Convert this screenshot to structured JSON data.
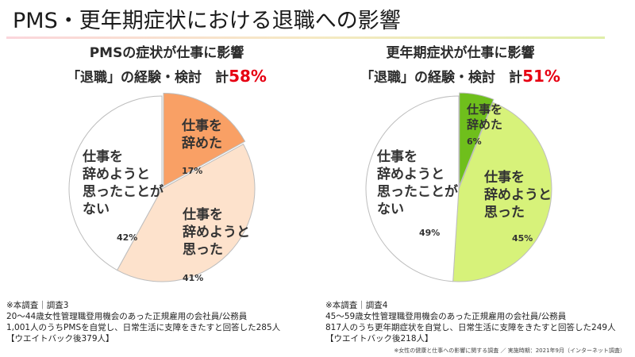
{
  "page": {
    "title": "PMS・更年期症状における退職への影響",
    "source_note": "※女性の健康と仕事への影響に関する調査 ／ 実施時期：2021年9月（インターネット調査）"
  },
  "chart_data": [
    {
      "type": "pie",
      "title": "PMSの症状が仕事に影響",
      "subtitle_prefix": "「退職」の経験・検討　計",
      "subtitle_value": "58%",
      "highlight_color": "#e60012",
      "slices": [
        {
          "label": "仕事を\n辞めた",
          "value": 17,
          "value_label": "17%",
          "color": "#f9a065"
        },
        {
          "label": "仕事を\n辞めようと\n思った",
          "value": 41,
          "value_label": "41%",
          "color": "#fde2cc"
        },
        {
          "label": "仕事を\n辞めようと\n思ったことが\nない",
          "value": 42,
          "value_label": "42%",
          "color": "#ffffff"
        }
      ],
      "footnote": [
        "※本調査｜調査3",
        "20～44歳女性管理職登用機会のあった正規雇用の会社員/公務員",
        "1,001人のうちPMSを自覚し、日常生活に支障をきたすと回答した285人",
        "【ウエイトバック後379人】"
      ]
    },
    {
      "type": "pie",
      "title": "更年期症状が仕事に影響",
      "subtitle_prefix": "「退職」の経験・検討　計",
      "subtitle_value": "51%",
      "highlight_color": "#e60012",
      "slices": [
        {
          "label": "仕事を\n辞めた",
          "value": 6,
          "value_label": "6%",
          "color": "#6fbf1c"
        },
        {
          "label": "仕事を\n辞めようと\n思った",
          "value": 45,
          "value_label": "45%",
          "color": "#d7f27a"
        },
        {
          "label": "仕事を\n辞めようと\n思ったことが\nない",
          "value": 49,
          "value_label": "49%",
          "color": "#ffffff"
        }
      ],
      "footnote": [
        "※本調査｜調査4",
        "45～59歳女性管理職登用機会のあった正規雇用の会社員/公務員",
        "817人のうち更年期症状を自覚し、日常生活に支障をきたすと回答した249人",
        "【ウエイトバック後218人】"
      ]
    }
  ]
}
